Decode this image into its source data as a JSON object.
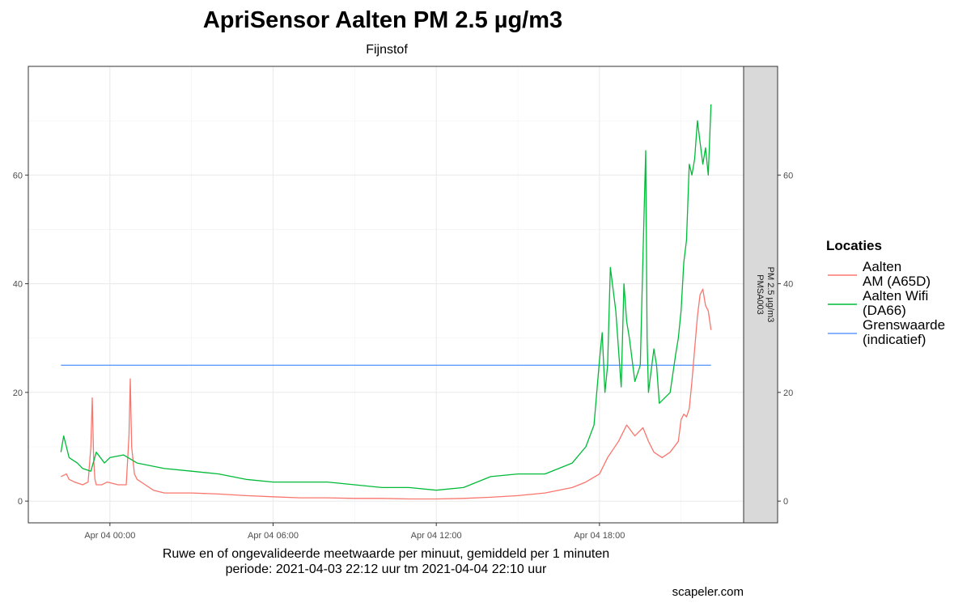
{
  "chart_data": {
    "type": "line",
    "title": "ApriSensor Aalten PM 2.5 µg/m3",
    "subtitle": "Fijnstof",
    "xlabel": "",
    "ylabel": "",
    "x_unit": "hours since 2021-04-04 00:00",
    "xlim": [
      -3.0,
      23.3
    ],
    "ylim": [
      -4.0,
      80.0
    ],
    "y_ticks": [
      0,
      20,
      40,
      60
    ],
    "y_tick_labels": [
      "0",
      "20",
      "40",
      "60"
    ],
    "x_ticks": [
      0,
      6,
      12,
      18
    ],
    "x_tick_labels": [
      "Apr 04 00:00",
      "Apr 04 06:00",
      "Apr 04 12:00",
      "Apr 04 18:00"
    ],
    "grid": true,
    "facet_strip": [
      "PMSA003",
      "PM 2.5 µg/m3"
    ],
    "caption_line1": "Ruwe en of ongevalideerde meetwaarde per minuut, gemiddeld per 1 minuten",
    "caption_line2": "periode: 2021-04-03 22:12 uur tm 2021-04-04 22:10 uur",
    "credit": "scapeler.com",
    "legend_title": "Locaties",
    "legend_position": "right",
    "series": [
      {
        "name": "Aalten AM (A65D)",
        "label_lines": [
          "Aalten",
          "AM (A65D)"
        ],
        "color": "#F8766D",
        "x": [
          -1.8,
          -1.6,
          -1.5,
          -1.3,
          -1.0,
          -0.8,
          -0.7,
          -0.65,
          -0.6,
          -0.55,
          -0.5,
          -0.3,
          -0.1,
          0.3,
          0.6,
          0.7,
          0.75,
          0.8,
          0.9,
          1.0,
          1.3,
          1.6,
          2.0,
          3.0,
          4.0,
          5.0,
          6.0,
          7.0,
          8.0,
          9.0,
          10.0,
          11.0,
          12.0,
          13.0,
          14.0,
          15.0,
          16.0,
          17.0,
          17.5,
          18.0,
          18.3,
          18.7,
          19.0,
          19.3,
          19.6,
          19.8,
          20.0,
          20.3,
          20.6,
          20.9,
          21.0,
          21.1,
          21.2,
          21.3,
          21.4,
          21.5,
          21.6,
          21.7,
          21.8,
          21.9,
          22.0,
          22.1
        ],
        "y": [
          4.5,
          5.0,
          4.0,
          3.5,
          3.0,
          3.5,
          10.0,
          19.0,
          8.0,
          4.0,
          3.0,
          3.0,
          3.5,
          3.0,
          3.0,
          12.0,
          22.5,
          10.0,
          5.0,
          4.0,
          3.0,
          2.0,
          1.5,
          1.5,
          1.3,
          1.0,
          0.8,
          0.6,
          0.6,
          0.5,
          0.5,
          0.4,
          0.4,
          0.5,
          0.7,
          1.0,
          1.5,
          2.5,
          3.5,
          5.0,
          8.0,
          11.0,
          14.0,
          12.0,
          13.5,
          11.0,
          9.0,
          8.0,
          9.0,
          11.0,
          15.0,
          16.0,
          15.5,
          17.0,
          22.0,
          28.0,
          34.0,
          38.0,
          39.0,
          36.0,
          35.0,
          31.5
        ]
      },
      {
        "name": "Aalten Wifi (DA66)",
        "label_lines": [
          "Aalten Wifi",
          "(DA66)"
        ],
        "color": "#00BA38",
        "x": [
          -1.8,
          -1.7,
          -1.5,
          -1.2,
          -1.0,
          -0.7,
          -0.5,
          -0.2,
          0.0,
          0.5,
          1.0,
          2.0,
          3.0,
          4.0,
          5.0,
          6.0,
          7.0,
          8.0,
          9.0,
          10.0,
          11.0,
          12.0,
          13.0,
          14.0,
          15.0,
          16.0,
          17.0,
          17.5,
          17.8,
          18.0,
          18.1,
          18.2,
          18.3,
          18.4,
          18.6,
          18.8,
          18.9,
          19.0,
          19.1,
          19.3,
          19.5,
          19.6,
          19.7,
          19.75,
          19.8,
          19.9,
          20.0,
          20.1,
          20.2,
          20.4,
          20.6,
          20.8,
          20.9,
          21.0,
          21.1,
          21.2,
          21.3,
          21.4,
          21.5,
          21.6,
          21.7,
          21.8,
          21.9,
          22.0,
          22.1
        ],
        "y": [
          9.0,
          12.0,
          8.0,
          7.0,
          6.0,
          5.5,
          9.0,
          7.0,
          8.0,
          8.5,
          7.0,
          6.0,
          5.5,
          5.0,
          4.0,
          3.5,
          3.5,
          3.5,
          3.0,
          2.5,
          2.5,
          2.0,
          2.5,
          4.5,
          5.0,
          5.0,
          7.0,
          10.0,
          14.0,
          26.0,
          31.0,
          20.0,
          25.0,
          43.0,
          35.0,
          21.0,
          40.0,
          33.0,
          30.0,
          22.0,
          25.0,
          45.0,
          64.5,
          30.0,
          20.0,
          24.0,
          28.0,
          25.0,
          18.0,
          19.0,
          20.0,
          27.0,
          30.0,
          35.0,
          44.0,
          48.0,
          62.0,
          60.0,
          63.0,
          70.0,
          66.0,
          62.0,
          65.0,
          60.0,
          73.0
        ]
      },
      {
        "name": "Grenswaarde (indicatief)",
        "label_lines": [
          "Grenswaarde",
          "(indicatief)"
        ],
        "color": "#619CFF",
        "x": [
          -1.8,
          22.1
        ],
        "y": [
          25.0,
          25.0
        ]
      }
    ]
  }
}
